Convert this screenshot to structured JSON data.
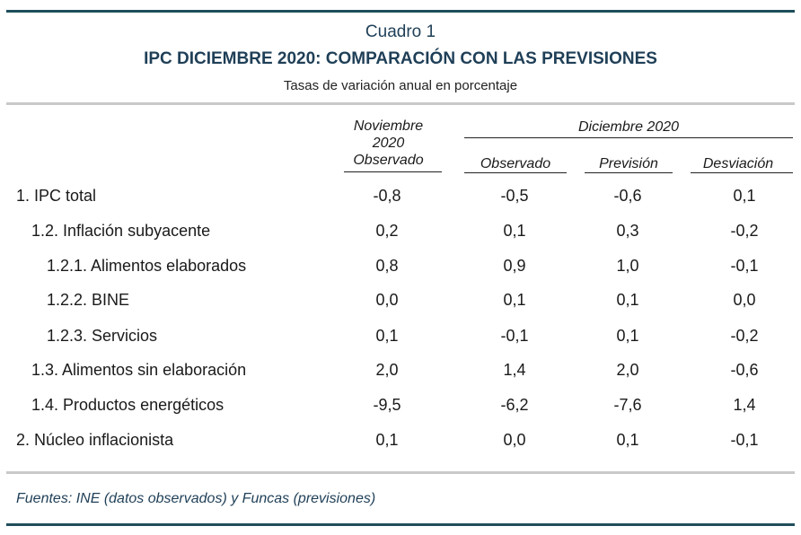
{
  "header": {
    "table_number": "Cuadro 1",
    "title": "IPC DICIEMBRE 2020: COMPARACIÓN CON LAS PREVISIONES",
    "subtitle": "Tasas de variación anual en porcentaje"
  },
  "columns": {
    "nov_line1": "Noviembre",
    "nov_line2": "2020",
    "nov_line3": "Observado",
    "dic_group": "Diciembre 2020",
    "dic_observado": "Observado",
    "dic_prevision": "Previsión",
    "dic_desviacion": "Desviación"
  },
  "rows": [
    {
      "label": "1. IPC total",
      "nov_obs": "-0,8",
      "dic_obs": "-0,5",
      "prev": "-0,6",
      "desv": "0,1"
    },
    {
      "label": "1.2. Inflación subyacente",
      "nov_obs": "0,2",
      "dic_obs": "0,1",
      "prev": "0,3",
      "desv": "-0,2"
    },
    {
      "label": "1.2.1. Alimentos elaborados",
      "nov_obs": "0,8",
      "dic_obs": "0,9",
      "prev": "1,0",
      "desv": "-0,1"
    },
    {
      "label": "1.2.2. BINE",
      "nov_obs": "0,0",
      "dic_obs": "0,1",
      "prev": "0,1",
      "desv": "0,0"
    },
    {
      "label": "1.2.3. Servicios",
      "nov_obs": "0,1",
      "dic_obs": "-0,1",
      "prev": "0,1",
      "desv": "-0,2"
    },
    {
      "label": "1.3. Alimentos sin elaboración",
      "nov_obs": "2,0",
      "dic_obs": "1,4",
      "prev": "2,0",
      "desv": "-0,6"
    },
    {
      "label": "1.4. Productos energéticos",
      "nov_obs": "-9,5",
      "dic_obs": "-6,2",
      "prev": "-7,6",
      "desv": "1,4"
    },
    {
      "label": "2. Núcleo inflacionista",
      "nov_obs": "0,1",
      "dic_obs": "0,0",
      "prev": "0,1",
      "desv": "-0,1"
    }
  ],
  "footer": {
    "source": "Fuentes: INE (datos observados) y Funcas (previsiones)"
  },
  "colors": {
    "accent": "#1f3f57",
    "rule_dark": "#1f4e5a",
    "rule_light": "#c9c9c9"
  }
}
